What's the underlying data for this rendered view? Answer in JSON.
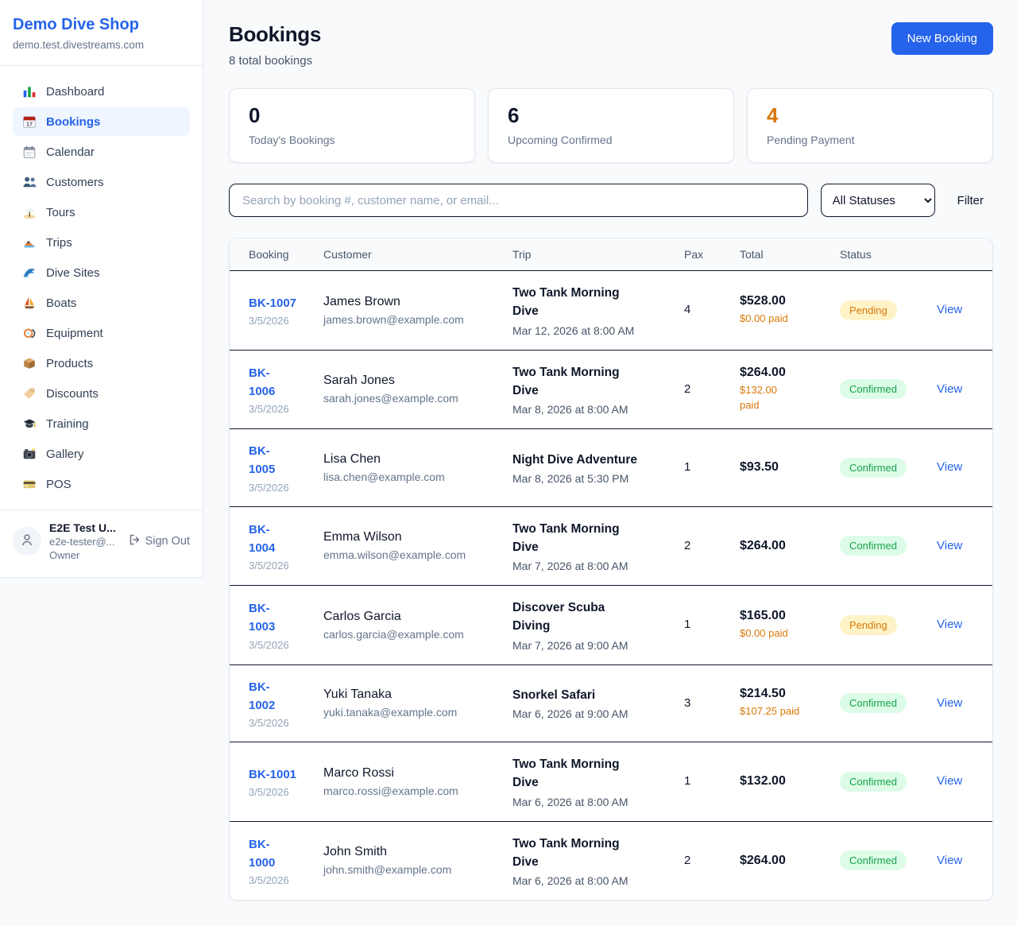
{
  "colors": {
    "accent": "#2563eb",
    "pending_text": "#d97706",
    "pending_bg": "#fef3c7",
    "confirmed_text": "#16a34a",
    "confirmed_bg": "#dcfce7",
    "warning_orange": "#d97706"
  },
  "sidebar": {
    "shop_name": "Demo Dive Shop",
    "domain": "demo.test.divestreams.com",
    "items": [
      {
        "icon": "bar-chart-icon",
        "label": "Dashboard",
        "active": false
      },
      {
        "icon": "bookings-calendar-icon",
        "label": "Bookings",
        "active": true
      },
      {
        "icon": "calendar-icon",
        "label": "Calendar",
        "active": false
      },
      {
        "icon": "customers-icon",
        "label": "Customers",
        "active": false
      },
      {
        "icon": "tours-island-icon",
        "label": "Tours",
        "active": false
      },
      {
        "icon": "trips-boat-icon",
        "label": "Trips",
        "active": false
      },
      {
        "icon": "dive-sites-wave-icon",
        "label": "Dive Sites",
        "active": false
      },
      {
        "icon": "boats-sailboat-icon",
        "label": "Boats",
        "active": false
      },
      {
        "icon": "equipment-mask-icon",
        "label": "Equipment",
        "active": false
      },
      {
        "icon": "products-box-icon",
        "label": "Products",
        "active": false
      },
      {
        "icon": "discounts-tag-icon",
        "label": "Discounts",
        "active": false
      },
      {
        "icon": "training-cap-icon",
        "label": "Training",
        "active": false
      },
      {
        "icon": "gallery-camera-icon",
        "label": "Gallery",
        "active": false
      },
      {
        "icon": "pos-card-icon",
        "label": "POS",
        "active": false
      }
    ],
    "user": {
      "name": "E2E Test U...",
      "email": "e2e-tester@...",
      "role": "Owner",
      "sign_out": "Sign Out"
    }
  },
  "header": {
    "title": "Bookings",
    "subtitle": "8 total bookings",
    "new_booking": "New Booking"
  },
  "stats": [
    {
      "value": "0",
      "label": "Today's Bookings",
      "accent": "dark"
    },
    {
      "value": "6",
      "label": "Upcoming Confirmed",
      "accent": "dark"
    },
    {
      "value": "4",
      "label": "Pending Payment",
      "accent": "orange"
    }
  ],
  "filters": {
    "search_placeholder": "Search by booking #, customer name, or email...",
    "status_select": "All Statuses",
    "filter_label": "Filter"
  },
  "table": {
    "columns": [
      "Booking",
      "Customer",
      "Trip",
      "Pax",
      "Total",
      "Status"
    ],
    "rows": [
      {
        "id": "BK-1007",
        "date": "3/5/2026",
        "customer": "James Brown",
        "email": "james.brown@example.com",
        "trip": "Two Tank Morning\nDive",
        "trip_date": "Mar 12, 2026 at 8:00 AM",
        "pax": "4",
        "total": "$528.00",
        "paid": "$0.00 paid",
        "status": "Pending",
        "action": "View"
      },
      {
        "id": "BK-\n1006",
        "date": "3/5/2026",
        "customer": "Sarah Jones",
        "email": "sarah.jones@example.com",
        "trip": "Two Tank Morning\nDive",
        "trip_date": "Mar 8, 2026 at 8:00 AM",
        "pax": "2",
        "total": "$264.00",
        "paid": "$132.00\npaid",
        "status": "Confirmed",
        "action": "View"
      },
      {
        "id": "BK-\n1005",
        "date": "3/5/2026",
        "customer": "Lisa Chen",
        "email": "lisa.chen@example.com",
        "trip": "Night Dive Adventure",
        "trip_date": "Mar 8, 2026 at 5:30 PM",
        "pax": "1",
        "total": "$93.50",
        "paid": "",
        "status": "Confirmed",
        "action": "View"
      },
      {
        "id": "BK-\n1004",
        "date": "3/5/2026",
        "customer": "Emma Wilson",
        "email": "emma.wilson@example.com",
        "trip": "Two Tank Morning\nDive",
        "trip_date": "Mar 7, 2026 at 8:00 AM",
        "pax": "2",
        "total": "$264.00",
        "paid": "",
        "status": "Confirmed",
        "action": "View"
      },
      {
        "id": "BK-\n1003",
        "date": "3/5/2026",
        "customer": "Carlos Garcia",
        "email": "carlos.garcia@example.com",
        "trip": "Discover Scuba\nDiving",
        "trip_date": "Mar 7, 2026 at 9:00 AM",
        "pax": "1",
        "total": "$165.00",
        "paid": "$0.00 paid",
        "status": "Pending",
        "action": "View"
      },
      {
        "id": "BK-\n1002",
        "date": "3/5/2026",
        "customer": "Yuki Tanaka",
        "email": "yuki.tanaka@example.com",
        "trip": "Snorkel Safari",
        "trip_date": "Mar 6, 2026 at 9:00 AM",
        "pax": "3",
        "total": "$214.50",
        "paid": "$107.25 paid",
        "status": "Confirmed",
        "action": "View"
      },
      {
        "id": "BK-1001",
        "date": "3/5/2026",
        "customer": "Marco Rossi",
        "email": "marco.rossi@example.com",
        "trip": "Two Tank Morning\nDive",
        "trip_date": "Mar 6, 2026 at 8:00 AM",
        "pax": "1",
        "total": "$132.00",
        "paid": "",
        "status": "Confirmed",
        "action": "View"
      },
      {
        "id": "BK-\n1000",
        "date": "3/5/2026",
        "customer": "John Smith",
        "email": "john.smith@example.com",
        "trip": "Two Tank Morning\nDive",
        "trip_date": "Mar 6, 2026 at 8:00 AM",
        "pax": "2",
        "total": "$264.00",
        "paid": "",
        "status": "Confirmed",
        "action": "View"
      }
    ]
  }
}
